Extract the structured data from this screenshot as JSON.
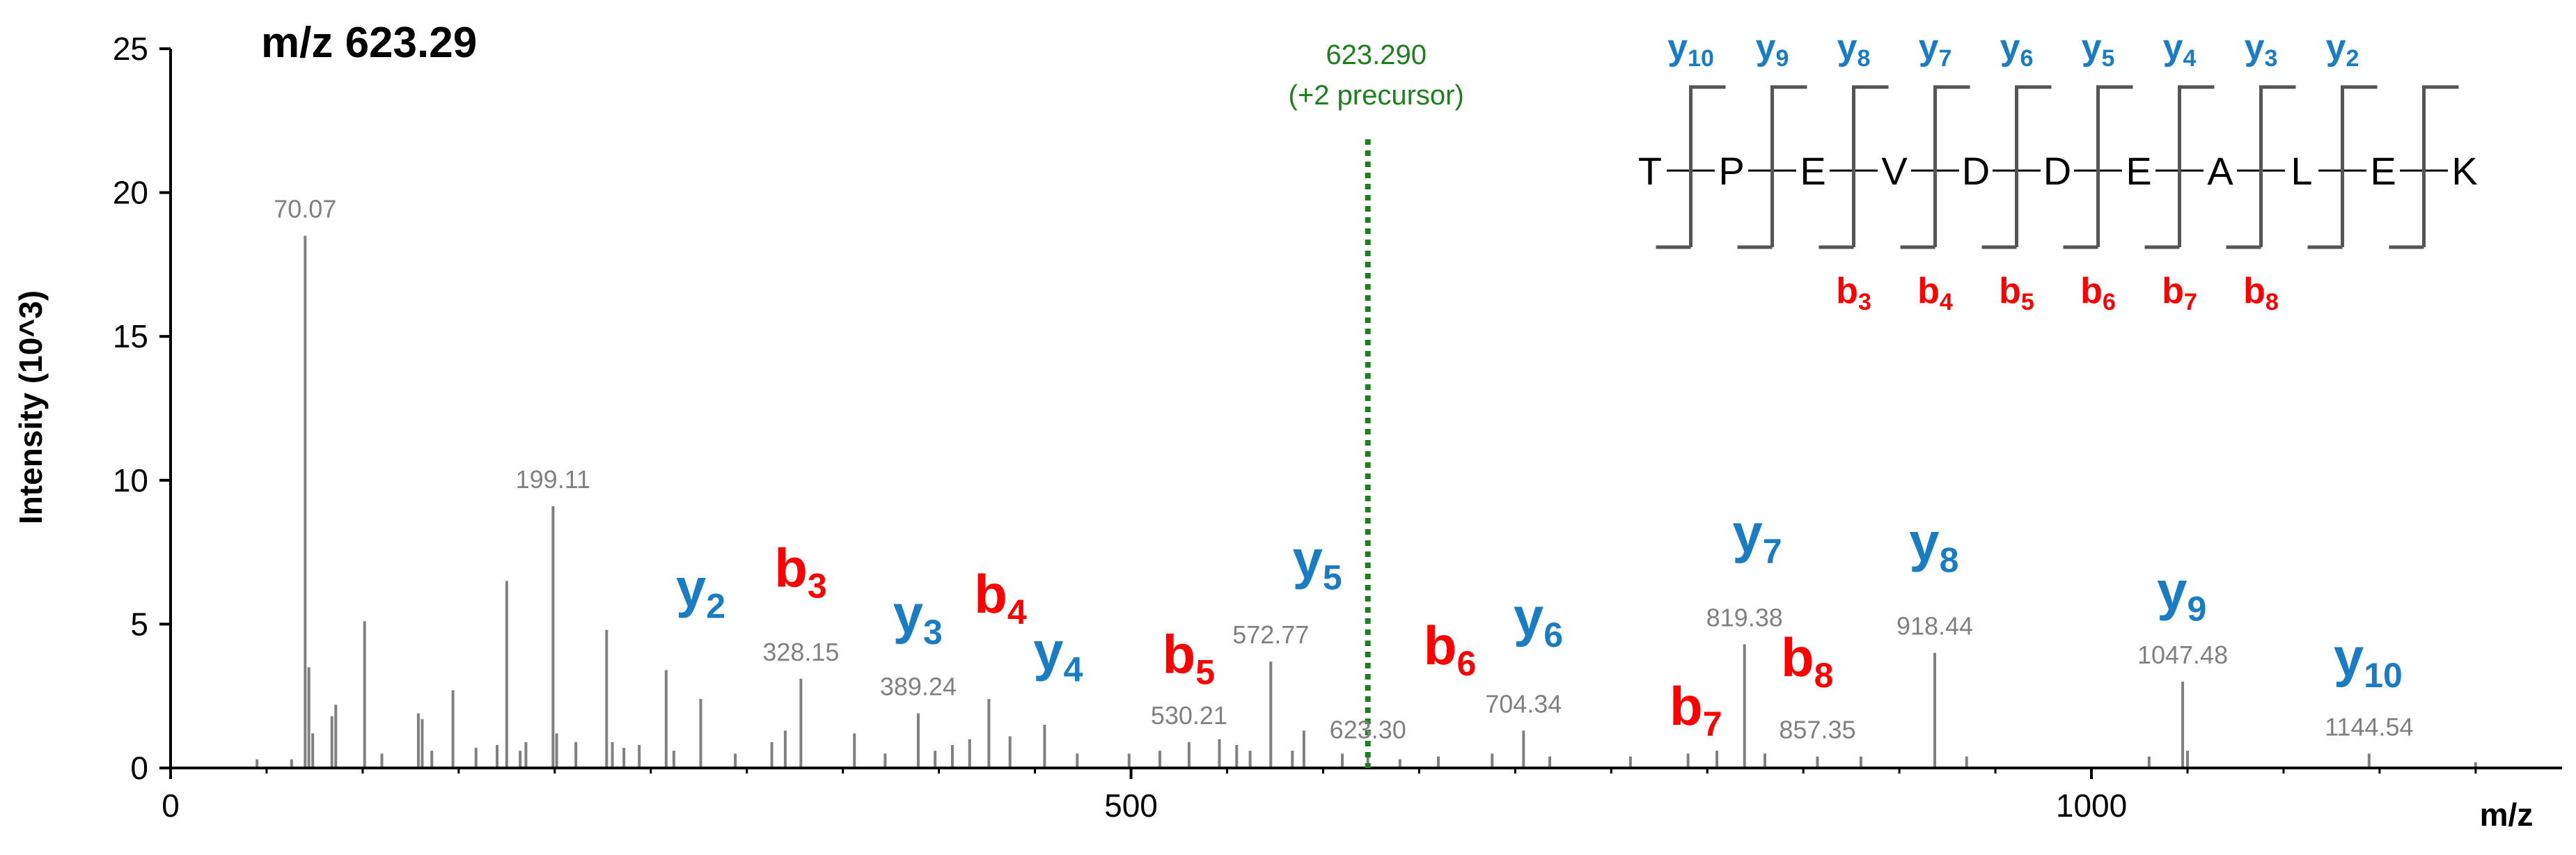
{
  "chart_data": {
    "type": "bar",
    "title": "m/z 623.29",
    "xlabel": "m/z",
    "ylabel": "Intensity (10^3)",
    "xlim": [
      0,
      1245
    ],
    "ylim": [
      0,
      25
    ],
    "xticks": [
      0,
      500,
      1000
    ],
    "yticks": [
      0,
      5,
      10,
      15,
      20,
      25
    ],
    "grid": false,
    "colors": {
      "peak": "#808080",
      "y_ion": "#1a7dc4",
      "b_ion": "#ff0000",
      "precursor": "#1e7f1e",
      "peak_label": "#808080",
      "axis": "#000000"
    },
    "peaks": [
      {
        "mz": 45,
        "intensity": 0.3
      },
      {
        "mz": 63,
        "intensity": 0.3
      },
      {
        "mz": 70.07,
        "intensity": 18.5
      },
      {
        "mz": 72,
        "intensity": 3.5
      },
      {
        "mz": 74,
        "intensity": 1.2
      },
      {
        "mz": 84,
        "intensity": 1.8
      },
      {
        "mz": 86,
        "intensity": 2.2
      },
      {
        "mz": 101,
        "intensity": 5.1
      },
      {
        "mz": 110,
        "intensity": 0.5
      },
      {
        "mz": 129,
        "intensity": 1.9
      },
      {
        "mz": 131,
        "intensity": 1.7
      },
      {
        "mz": 136,
        "intensity": 0.6
      },
      {
        "mz": 147,
        "intensity": 2.7
      },
      {
        "mz": 159,
        "intensity": 0.7
      },
      {
        "mz": 170,
        "intensity": 0.8
      },
      {
        "mz": 175,
        "intensity": 6.5
      },
      {
        "mz": 182,
        "intensity": 0.6
      },
      {
        "mz": 185,
        "intensity": 0.9
      },
      {
        "mz": 199.11,
        "intensity": 9.1
      },
      {
        "mz": 201,
        "intensity": 1.2
      },
      {
        "mz": 211,
        "intensity": 0.9
      },
      {
        "mz": 227,
        "intensity": 4.8
      },
      {
        "mz": 230,
        "intensity": 0.9
      },
      {
        "mz": 236,
        "intensity": 0.7
      },
      {
        "mz": 244,
        "intensity": 0.8
      },
      {
        "mz": 258,
        "intensity": 3.4
      },
      {
        "mz": 262,
        "intensity": 0.6
      },
      {
        "mz": 276,
        "intensity": 2.4
      },
      {
        "mz": 294,
        "intensity": 0.5
      },
      {
        "mz": 313,
        "intensity": 0.9
      },
      {
        "mz": 320,
        "intensity": 1.3
      },
      {
        "mz": 328.15,
        "intensity": 3.1
      },
      {
        "mz": 356,
        "intensity": 1.2
      },
      {
        "mz": 372,
        "intensity": 0.5
      },
      {
        "mz": 389.24,
        "intensity": 1.9
      },
      {
        "mz": 398,
        "intensity": 0.6
      },
      {
        "mz": 407,
        "intensity": 0.8
      },
      {
        "mz": 416,
        "intensity": 1.0
      },
      {
        "mz": 426,
        "intensity": 2.4
      },
      {
        "mz": 437,
        "intensity": 1.1
      },
      {
        "mz": 455,
        "intensity": 1.5
      },
      {
        "mz": 472,
        "intensity": 0.5
      },
      {
        "mz": 499,
        "intensity": 0.5
      },
      {
        "mz": 515,
        "intensity": 0.6
      },
      {
        "mz": 530.21,
        "intensity": 0.9
      },
      {
        "mz": 546,
        "intensity": 1.0
      },
      {
        "mz": 555,
        "intensity": 0.8
      },
      {
        "mz": 562,
        "intensity": 0.6
      },
      {
        "mz": 572.77,
        "intensity": 3.7
      },
      {
        "mz": 584,
        "intensity": 0.6
      },
      {
        "mz": 590,
        "intensity": 1.3
      },
      {
        "mz": 610,
        "intensity": 0.5
      },
      {
        "mz": 623.3,
        "intensity": 0.4
      },
      {
        "mz": 640,
        "intensity": 0.3
      },
      {
        "mz": 660,
        "intensity": 0.4
      },
      {
        "mz": 688,
        "intensity": 0.5
      },
      {
        "mz": 704.34,
        "intensity": 1.3
      },
      {
        "mz": 718,
        "intensity": 0.4
      },
      {
        "mz": 760,
        "intensity": 0.4
      },
      {
        "mz": 790,
        "intensity": 0.5
      },
      {
        "mz": 805,
        "intensity": 0.6
      },
      {
        "mz": 819.38,
        "intensity": 4.3
      },
      {
        "mz": 830,
        "intensity": 0.5
      },
      {
        "mz": 857.35,
        "intensity": 0.4
      },
      {
        "mz": 880,
        "intensity": 0.4
      },
      {
        "mz": 918.44,
        "intensity": 4.0
      },
      {
        "mz": 935,
        "intensity": 0.4
      },
      {
        "mz": 1030,
        "intensity": 0.4
      },
      {
        "mz": 1047.48,
        "intensity": 3.0
      },
      {
        "mz": 1050,
        "intensity": 0.6
      },
      {
        "mz": 1144.54,
        "intensity": 0.5
      },
      {
        "mz": 1200,
        "intensity": 0.2
      }
    ],
    "peak_labels": [
      {
        "mz": 70.07,
        "intensity": 18.5,
        "label": "70.07"
      },
      {
        "mz": 199.11,
        "intensity": 9.1,
        "label": "199.11"
      },
      {
        "mz": 328.15,
        "intensity": 3.1,
        "label": "328.15"
      },
      {
        "mz": 389.24,
        "intensity": 1.9,
        "label": "389.24"
      },
      {
        "mz": 530.21,
        "intensity": 0.9,
        "label": "530.21"
      },
      {
        "mz": 572.77,
        "intensity": 3.7,
        "label": "572.77"
      },
      {
        "mz": 623.3,
        "intensity": 0.4,
        "label": "623.30"
      },
      {
        "mz": 704.34,
        "intensity": 1.3,
        "label": "704.34"
      },
      {
        "mz": 819.38,
        "intensity": 4.3,
        "label": "819.38"
      },
      {
        "mz": 857.35,
        "intensity": 0.4,
        "label": "857.35"
      },
      {
        "mz": 918.44,
        "intensity": 4.0,
        "label": "918.44"
      },
      {
        "mz": 1047.48,
        "intensity": 3.0,
        "label": "1047.48"
      },
      {
        "mz": 1144.54,
        "intensity": 0.5,
        "label": "1144.54"
      }
    ],
    "ion_annotations": [
      {
        "ion": "y",
        "num": "2",
        "mz": 276,
        "intensity": 5.6
      },
      {
        "ion": "b",
        "num": "3",
        "mz": 328,
        "intensity": 6.3
      },
      {
        "ion": "y",
        "num": "3",
        "mz": 389,
        "intensity": 4.7
      },
      {
        "ion": "b",
        "num": "4",
        "mz": 432,
        "intensity": 5.4
      },
      {
        "ion": "y",
        "num": "4",
        "mz": 462,
        "intensity": 3.4
      },
      {
        "ion": "b",
        "num": "5",
        "mz": 530,
        "intensity": 3.3
      },
      {
        "ion": "y",
        "num": "5",
        "mz": 597,
        "intensity": 6.6
      },
      {
        "ion": "b",
        "num": "6",
        "mz": 666,
        "intensity": 3.6
      },
      {
        "ion": "y",
        "num": "6",
        "mz": 712,
        "intensity": 4.6
      },
      {
        "ion": "b",
        "num": "7",
        "mz": 794,
        "intensity": 1.5
      },
      {
        "ion": "y",
        "num": "7",
        "mz": 826,
        "intensity": 7.5
      },
      {
        "ion": "b",
        "num": "8",
        "mz": 852,
        "intensity": 3.2
      },
      {
        "ion": "y",
        "num": "8",
        "mz": 918,
        "intensity": 7.2
      },
      {
        "ion": "y",
        "num": "9",
        "mz": 1047,
        "intensity": 5.5
      },
      {
        "ion": "y",
        "num": "10",
        "mz": 1144,
        "intensity": 3.2
      }
    ],
    "precursor": {
      "mz": 623.29,
      "line_label": "623.290",
      "note": "(+2 precursor)"
    },
    "sequence": {
      "residues": [
        "T",
        "P",
        "E",
        "V",
        "D",
        "D",
        "E",
        "A",
        "L",
        "E",
        "K"
      ],
      "y_ions": [
        "10",
        "9",
        "8",
        "7",
        "6",
        "5",
        "4",
        "3",
        "2"
      ],
      "b_ions": [
        {
          "after_residue": 3,
          "num": "3"
        },
        {
          "after_residue": 4,
          "num": "4"
        },
        {
          "after_residue": 5,
          "num": "5"
        },
        {
          "after_residue": 6,
          "num": "6"
        },
        {
          "after_residue": 7,
          "num": "7"
        },
        {
          "after_residue": 8,
          "num": "8"
        }
      ]
    }
  }
}
